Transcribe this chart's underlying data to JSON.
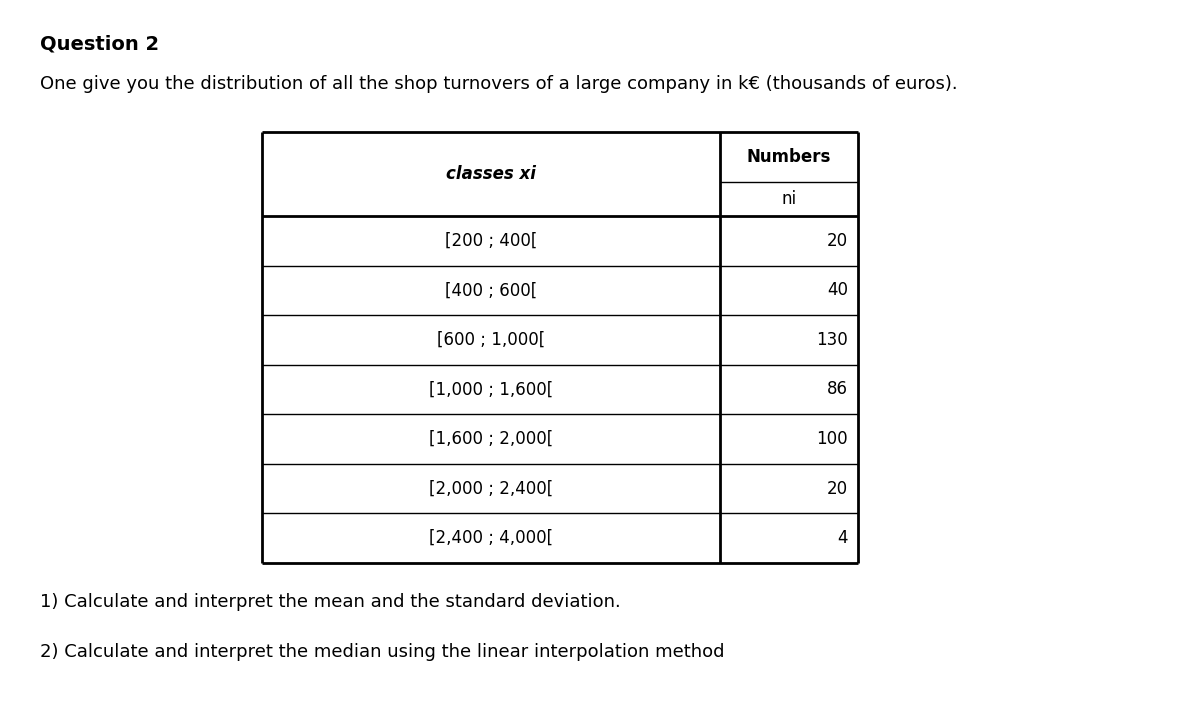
{
  "title": "Question 2",
  "subtitle": "One give you the distribution of all the shop turnovers of a large company in k€ (thousands of euros).",
  "col1_header": "classes xi",
  "col2_header_top": "Numbers",
  "col2_header_bottom": "ni",
  "classes": [
    "[200 ; 400[",
    "[400 ; 600[",
    "[600 ; 1,000[",
    "[1,000 ; 1,600[",
    "[1,600 ; 2,000[",
    "[2,000 ; 2,400[",
    "[2,400 ; 4,000["
  ],
  "numbers": [
    20,
    40,
    130,
    86,
    100,
    20,
    4
  ],
  "question1": "1) Calculate and interpret the mean and the standard deviation.",
  "question2": "2) Calculate and interpret the median using the linear interpolation method",
  "bg_color": "#ffffff",
  "text_color": "#000000",
  "lw_outer": 2.0,
  "lw_inner": 1.0,
  "fontsize_title": 14,
  "fontsize_body": 13,
  "fontsize_table": 12
}
